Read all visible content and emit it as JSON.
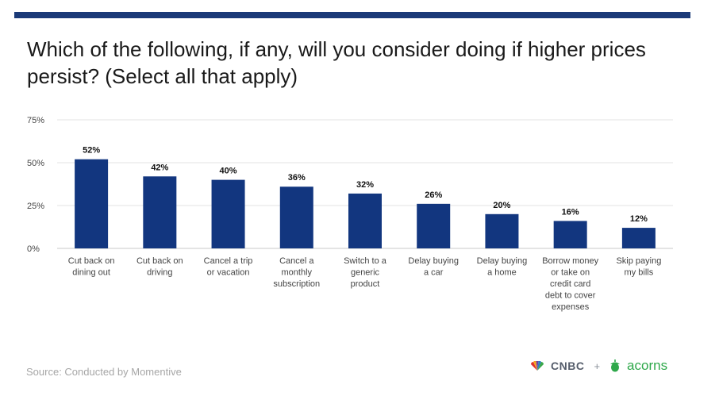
{
  "title": "Which of the following, if any, will you consider doing if higher prices persist? (Select all that apply)",
  "source": "Source: Conducted by Momentive",
  "logos": {
    "cnbc": "CNBC",
    "plus": "+",
    "acorns": "acorns"
  },
  "colors": {
    "bar": "#12367f",
    "rule": "#1b3a78",
    "grid": "#e3e3e3",
    "axis_text": "#444444",
    "acorns_green": "#2ea84a"
  },
  "chart_data": {
    "type": "bar",
    "title": "Which of the following, if any, will you consider doing if higher prices persist? (Select all that apply)",
    "categories": [
      [
        "Cut back on",
        "dining out"
      ],
      [
        "Cut back on",
        "driving"
      ],
      [
        "Cancel a trip",
        "or vacation"
      ],
      [
        "Cancel a",
        "monthly",
        "subscription"
      ],
      [
        "Switch to a",
        "generic",
        "product"
      ],
      [
        "Delay buying",
        "a car"
      ],
      [
        "Delay buying",
        "a home"
      ],
      [
        "Borrow money",
        "or take on",
        "credit card",
        "debt to cover",
        "expenses"
      ],
      [
        "Skip paying",
        "my bills"
      ]
    ],
    "values": [
      52,
      42,
      40,
      36,
      32,
      26,
      20,
      16,
      12
    ],
    "data_labels": [
      "52%",
      "42%",
      "40%",
      "36%",
      "32%",
      "26%",
      "20%",
      "16%",
      "12%"
    ],
    "yticks": [
      0,
      25,
      50,
      75
    ],
    "ytick_labels": [
      "0%",
      "25%",
      "50%",
      "75%"
    ],
    "ylim": [
      0,
      75
    ],
    "grid": true,
    "xlabel": "",
    "ylabel": ""
  }
}
